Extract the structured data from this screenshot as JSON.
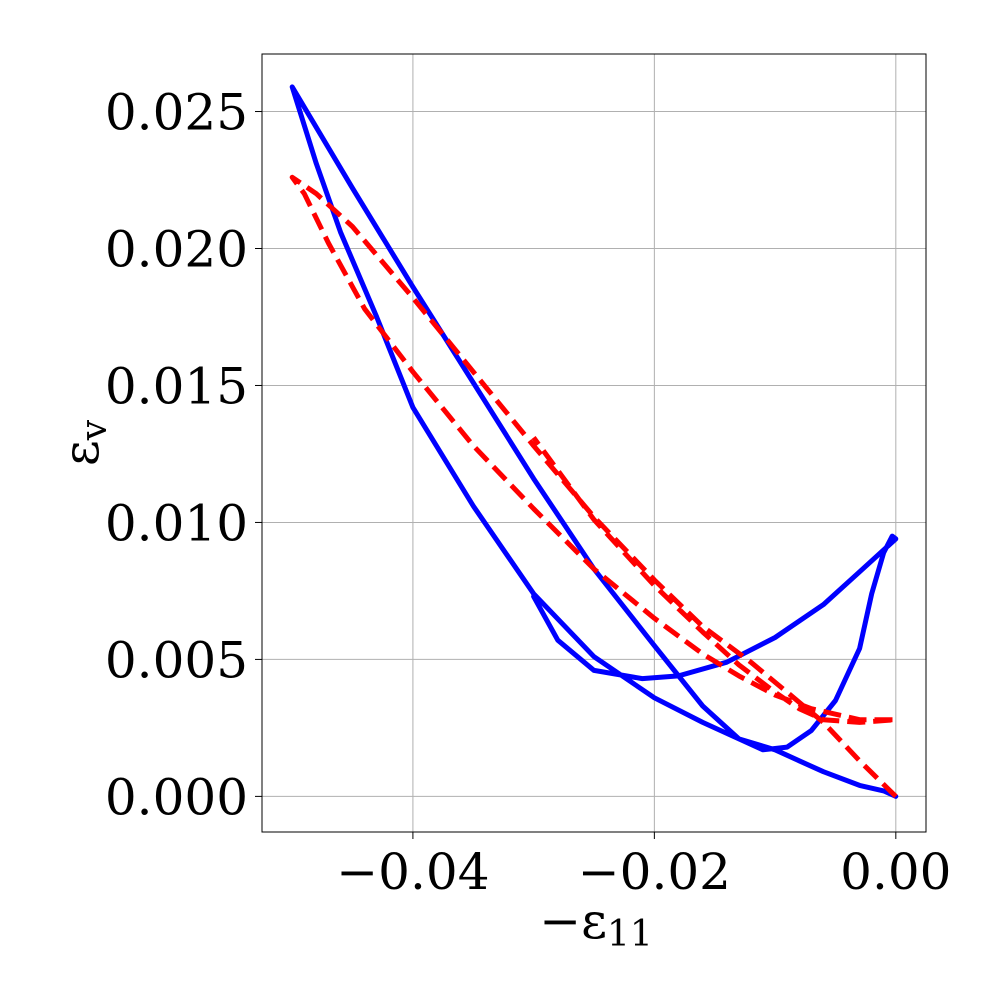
{
  "chart_data": {
    "type": "line",
    "title": "",
    "xlabel": {
      "base": "−ε",
      "sub": "11"
    },
    "ylabel": {
      "base": "ε",
      "sub": "v"
    },
    "xlim": [
      -0.0525,
      0.0025
    ],
    "ylim": [
      -0.0013,
      0.0271
    ],
    "grid": true,
    "legend": "none",
    "xticks": [
      {
        "value": -0.04,
        "label": "−0.04"
      },
      {
        "value": -0.02,
        "label": "−0.02"
      },
      {
        "value": 0.0,
        "label": "0.00"
      }
    ],
    "yticks": [
      {
        "value": 0.0,
        "label": "0.000"
      },
      {
        "value": 0.005,
        "label": "0.005"
      },
      {
        "value": 0.01,
        "label": "0.010"
      },
      {
        "value": 0.015,
        "label": "0.015"
      },
      {
        "value": 0.02,
        "label": "0.020"
      },
      {
        "value": 0.025,
        "label": "0.025"
      }
    ],
    "series": [
      {
        "color": "#0000ff",
        "dash": "solid",
        "points": [
          [
            0.0,
            0.0
          ],
          [
            -0.001,
            0.0002
          ],
          [
            -0.003,
            0.0004
          ],
          [
            -0.006,
            0.0009
          ],
          [
            -0.008,
            0.0013
          ],
          [
            -0.01,
            0.0017
          ],
          [
            -0.013,
            0.0021
          ],
          [
            -0.016,
            0.0027
          ],
          [
            -0.02,
            0.0036
          ],
          [
            -0.025,
            0.0051
          ],
          [
            -0.03,
            0.0074
          ],
          [
            -0.035,
            0.0106
          ],
          [
            -0.04,
            0.0142
          ],
          [
            -0.043,
            0.0175
          ],
          [
            -0.046,
            0.0206
          ],
          [
            -0.048,
            0.0231
          ],
          [
            -0.05,
            0.0259
          ],
          [
            -0.045,
            0.0222
          ],
          [
            -0.04,
            0.0186
          ],
          [
            -0.035,
            0.0151
          ],
          [
            -0.03,
            0.0116
          ],
          [
            -0.025,
            0.0083
          ],
          [
            -0.02,
            0.0055
          ],
          [
            -0.016,
            0.0033
          ],
          [
            -0.013,
            0.0021
          ],
          [
            -0.011,
            0.0017
          ],
          [
            -0.009,
            0.0018
          ],
          [
            -0.007,
            0.0024
          ],
          [
            -0.005,
            0.0035
          ],
          [
            -0.003,
            0.0054
          ],
          [
            -0.002,
            0.0074
          ],
          [
            -0.001,
            0.0089
          ],
          [
            -0.0003,
            0.0095
          ],
          [
            0.0,
            0.0094
          ],
          [
            -0.003,
            0.0082
          ],
          [
            -0.006,
            0.007
          ],
          [
            -0.01,
            0.0058
          ],
          [
            -0.014,
            0.0049
          ],
          [
            -0.018,
            0.0044
          ],
          [
            -0.021,
            0.0043
          ],
          [
            -0.025,
            0.0046
          ],
          [
            -0.028,
            0.0057
          ],
          [
            -0.03,
            0.0073
          ]
        ]
      },
      {
        "color": "#ff0000",
        "dash": "dashed",
        "points": [
          [
            0.0,
            0.0
          ],
          [
            -0.003,
            0.0013
          ],
          [
            -0.006,
            0.0027
          ],
          [
            -0.009,
            0.0038
          ],
          [
            -0.012,
            0.0049
          ],
          [
            -0.016,
            0.0062
          ],
          [
            -0.02,
            0.0079
          ],
          [
            -0.025,
            0.0102
          ],
          [
            -0.03,
            0.0128
          ],
          [
            -0.035,
            0.0155
          ],
          [
            -0.04,
            0.0182
          ],
          [
            -0.045,
            0.0208
          ],
          [
            -0.048,
            0.022
          ],
          [
            -0.05,
            0.0226
          ],
          [
            -0.049,
            0.022
          ],
          [
            -0.047,
            0.0202
          ],
          [
            -0.044,
            0.0178
          ],
          [
            -0.04,
            0.0155
          ],
          [
            -0.035,
            0.0128
          ],
          [
            -0.03,
            0.0105
          ],
          [
            -0.025,
            0.0083
          ],
          [
            -0.02,
            0.0065
          ],
          [
            -0.016,
            0.0052
          ],
          [
            -0.013,
            0.0044
          ],
          [
            -0.01,
            0.0037
          ],
          [
            -0.007,
            0.0032
          ],
          [
            -0.003,
            0.0028
          ],
          [
            0.0,
            0.0028
          ],
          [
            -0.003,
            0.0027
          ],
          [
            -0.006,
            0.0028
          ],
          [
            -0.008,
            0.0032
          ],
          [
            -0.01,
            0.0038
          ],
          [
            -0.013,
            0.0048
          ],
          [
            -0.016,
            0.006
          ],
          [
            -0.02,
            0.0077
          ],
          [
            -0.025,
            0.0101
          ],
          [
            -0.03,
            0.0131
          ]
        ]
      }
    ]
  }
}
